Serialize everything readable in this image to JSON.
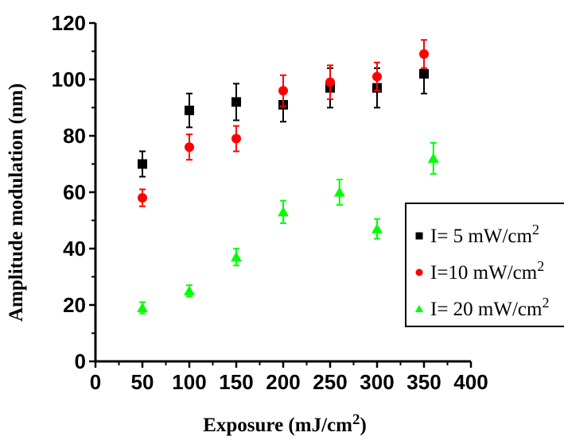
{
  "chart_data": {
    "type": "scatter",
    "xlabel": "Exposure (mJ/cm",
    "xlabel_sup": "2",
    "xlabel_end": ")",
    "ylabel": "Amplitude modulation (nm)",
    "xlim": [
      0,
      400
    ],
    "ylim": [
      0,
      120
    ],
    "xticks": [
      "0",
      "50",
      "100",
      "150",
      "200",
      "250",
      "300",
      "350",
      "400"
    ],
    "yticks": [
      "0",
      "20",
      "40",
      "60",
      "80",
      "100",
      "120"
    ],
    "grid": false,
    "legend_position": "right",
    "series": [
      {
        "name": "I= 5 mW/cm",
        "name_sup": "2",
        "marker": "square",
        "color": "#000000",
        "x": [
          50,
          100,
          150,
          200,
          250,
          300,
          350
        ],
        "y": [
          70,
          89,
          92,
          91,
          97,
          97,
          102
        ],
        "err": [
          4.5,
          6,
          6.5,
          6,
          7,
          7,
          7
        ]
      },
      {
        "name": "I=10 mW/cm",
        "name_sup": "2",
        "marker": "circle",
        "color": "#ff0000",
        "x": [
          50,
          100,
          150,
          200,
          250,
          300,
          350
        ],
        "y": [
          58,
          76,
          79,
          96,
          99,
          101,
          109
        ],
        "err": [
          3,
          4.5,
          4.5,
          5.5,
          6,
          5,
          5
        ]
      },
      {
        "name": "I= 20 mW/cm",
        "name_sup": "2",
        "marker": "triangle",
        "color": "#00ff00",
        "x": [
          50,
          100,
          150,
          200,
          260,
          300,
          360
        ],
        "y": [
          19,
          25,
          37,
          53,
          60,
          47,
          72
        ],
        "err": [
          2,
          2,
          3,
          4,
          4.5,
          3.5,
          5.5
        ]
      }
    ]
  }
}
